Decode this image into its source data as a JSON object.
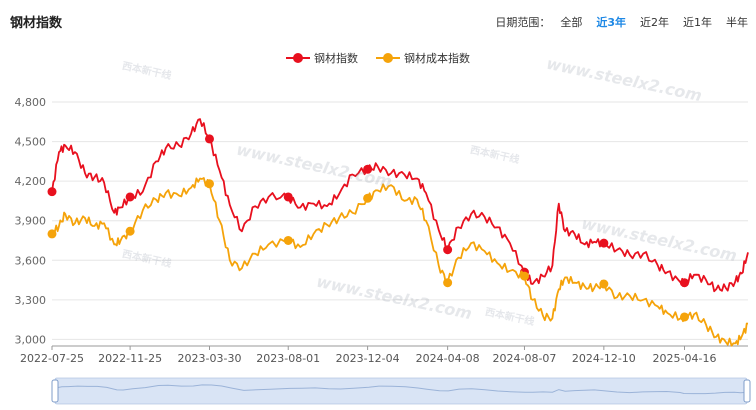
{
  "header": {
    "title": "钢材指数",
    "range_label": "日期范围：",
    "range_options": [
      "全部",
      "近3年",
      "近2年",
      "近1年",
      "半年"
    ],
    "active_option": "近3年",
    "accent_color": "#1e88e5"
  },
  "watermark": {
    "url": "www.steelx2.com",
    "brand": "西本新干线"
  },
  "chart_data": {
    "type": "line",
    "title": "",
    "xlabel": "",
    "ylabel": "",
    "ylim": [
      2950,
      4800
    ],
    "yticks": [
      3000,
      3300,
      3600,
      3900,
      4200,
      4500,
      4800
    ],
    "ytick_labels": [
      "3,000",
      "3,300",
      "3,600",
      "3,900",
      "4,200",
      "4,500",
      "4,800"
    ],
    "xlim": [
      "2022-07-25",
      "2025-07-25"
    ],
    "xticks": [
      "2022-07-25",
      "2022-11-25",
      "2023-03-30",
      "2023-08-01",
      "2023-12-04",
      "2024-04-08",
      "2024-08-07",
      "2024-12-10",
      "2025-04-16"
    ],
    "grid": "horizontal",
    "legend_position": "top-center",
    "series": [
      {
        "name": "钢材指数",
        "color": "#e8101e",
        "points": [
          [
            "2022-07-25",
            4120
          ],
          [
            "2022-08-05",
            4420
          ],
          [
            "2022-08-15",
            4470
          ],
          [
            "2022-08-30",
            4420
          ],
          [
            "2022-09-15",
            4260
          ],
          [
            "2022-09-30",
            4230
          ],
          [
            "2022-10-15",
            4190
          ],
          [
            "2022-10-31",
            3960
          ],
          [
            "2022-11-10",
            4000
          ],
          [
            "2022-11-25",
            4080
          ],
          [
            "2022-12-15",
            4120
          ],
          [
            "2023-01-05",
            4350
          ],
          [
            "2023-01-20",
            4450
          ],
          [
            "2023-02-10",
            4470
          ],
          [
            "2023-03-01",
            4560
          ],
          [
            "2023-03-15",
            4670
          ],
          [
            "2023-03-30",
            4520
          ],
          [
            "2023-04-15",
            4280
          ],
          [
            "2023-05-01",
            4020
          ],
          [
            "2023-05-20",
            3820
          ],
          [
            "2023-06-10",
            4010
          ],
          [
            "2023-07-01",
            4080
          ],
          [
            "2023-08-01",
            4080
          ],
          [
            "2023-08-20",
            4000
          ],
          [
            "2023-09-10",
            4030
          ],
          [
            "2023-10-01",
            4010
          ],
          [
            "2023-10-20",
            4100
          ],
          [
            "2023-11-10",
            4250
          ],
          [
            "2023-12-04",
            4290
          ],
          [
            "2023-12-20",
            4310
          ],
          [
            "2024-01-10",
            4260
          ],
          [
            "2024-01-31",
            4250
          ],
          [
            "2024-02-20",
            4220
          ],
          [
            "2024-03-05",
            4110
          ],
          [
            "2024-03-25",
            3830
          ],
          [
            "2024-04-08",
            3680
          ],
          [
            "2024-04-25",
            3850
          ],
          [
            "2024-05-15",
            3950
          ],
          [
            "2024-06-05",
            3930
          ],
          [
            "2024-06-25",
            3850
          ],
          [
            "2024-07-15",
            3730
          ],
          [
            "2024-08-07",
            3510
          ],
          [
            "2024-08-20",
            3420
          ],
          [
            "2024-09-05",
            3480
          ],
          [
            "2024-09-20",
            3560
          ],
          [
            "2024-09-30",
            4030
          ],
          [
            "2024-10-10",
            3820
          ],
          [
            "2024-10-25",
            3800
          ],
          [
            "2024-11-10",
            3720
          ],
          [
            "2024-11-25",
            3740
          ],
          [
            "2024-12-10",
            3730
          ],
          [
            "2024-12-31",
            3680
          ],
          [
            "2025-01-20",
            3640
          ],
          [
            "2025-02-10",
            3650
          ],
          [
            "2025-03-05",
            3560
          ],
          [
            "2025-03-20",
            3510
          ],
          [
            "2025-04-10",
            3430
          ],
          [
            "2025-04-16",
            3430
          ],
          [
            "2025-05-01",
            3490
          ],
          [
            "2025-05-20",
            3450
          ],
          [
            "2025-06-05",
            3380
          ],
          [
            "2025-06-20",
            3390
          ],
          [
            "2025-07-05",
            3440
          ],
          [
            "2025-07-15",
            3500
          ],
          [
            "2025-07-25",
            3660
          ]
        ],
        "markers": [
          [
            "2022-07-25",
            4120
          ],
          [
            "2022-11-25",
            4080
          ],
          [
            "2023-03-30",
            4520
          ],
          [
            "2023-08-01",
            4080
          ],
          [
            "2023-12-04",
            4290
          ],
          [
            "2024-04-08",
            3680
          ],
          [
            "2024-08-07",
            3510
          ],
          [
            "2024-12-10",
            3730
          ],
          [
            "2025-04-16",
            3430
          ]
        ]
      },
      {
        "name": "钢材成本指数",
        "color": "#f5a30a",
        "points": [
          [
            "2022-07-25",
            3800
          ],
          [
            "2022-08-05",
            3860
          ],
          [
            "2022-08-15",
            3950
          ],
          [
            "2022-08-30",
            3880
          ],
          [
            "2022-09-15",
            3920
          ],
          [
            "2022-09-30",
            3860
          ],
          [
            "2022-10-15",
            3880
          ],
          [
            "2022-10-31",
            3720
          ],
          [
            "2022-11-10",
            3750
          ],
          [
            "2022-11-25",
            3820
          ],
          [
            "2022-12-15",
            3980
          ],
          [
            "2023-01-05",
            4060
          ],
          [
            "2023-01-20",
            4110
          ],
          [
            "2023-02-10",
            4090
          ],
          [
            "2023-03-01",
            4150
          ],
          [
            "2023-03-15",
            4220
          ],
          [
            "2023-03-30",
            4180
          ],
          [
            "2023-04-15",
            3900
          ],
          [
            "2023-05-01",
            3600
          ],
          [
            "2023-05-20",
            3540
          ],
          [
            "2023-06-10",
            3650
          ],
          [
            "2023-07-01",
            3720
          ],
          [
            "2023-08-01",
            3750
          ],
          [
            "2023-08-20",
            3700
          ],
          [
            "2023-09-10",
            3800
          ],
          [
            "2023-10-01",
            3870
          ],
          [
            "2023-10-20",
            3920
          ],
          [
            "2023-11-10",
            3960
          ],
          [
            "2023-12-04",
            4070
          ],
          [
            "2023-12-20",
            4130
          ],
          [
            "2024-01-10",
            4170
          ],
          [
            "2024-01-31",
            4050
          ],
          [
            "2024-02-20",
            4060
          ],
          [
            "2024-03-05",
            3900
          ],
          [
            "2024-03-25",
            3560
          ],
          [
            "2024-04-08",
            3430
          ],
          [
            "2024-04-25",
            3620
          ],
          [
            "2024-05-15",
            3730
          ],
          [
            "2024-06-05",
            3670
          ],
          [
            "2024-06-25",
            3580
          ],
          [
            "2024-07-15",
            3520
          ],
          [
            "2024-08-07",
            3480
          ],
          [
            "2024-08-20",
            3300
          ],
          [
            "2024-09-05",
            3180
          ],
          [
            "2024-09-20",
            3160
          ],
          [
            "2024-09-30",
            3380
          ],
          [
            "2024-10-10",
            3470
          ],
          [
            "2024-10-25",
            3430
          ],
          [
            "2024-11-10",
            3400
          ],
          [
            "2024-11-25",
            3390
          ],
          [
            "2024-12-10",
            3420
          ],
          [
            "2024-12-31",
            3320
          ],
          [
            "2025-01-20",
            3330
          ],
          [
            "2025-02-10",
            3300
          ],
          [
            "2025-03-05",
            3250
          ],
          [
            "2025-03-20",
            3200
          ],
          [
            "2025-04-10",
            3160
          ],
          [
            "2025-04-16",
            3170
          ],
          [
            "2025-05-01",
            3190
          ],
          [
            "2025-05-20",
            3110
          ],
          [
            "2025-06-05",
            3020
          ],
          [
            "2025-06-20",
            2980
          ],
          [
            "2025-07-05",
            2970
          ],
          [
            "2025-07-15",
            3020
          ],
          [
            "2025-07-25",
            3120
          ]
        ],
        "markers": [
          [
            "2022-07-25",
            3800
          ],
          [
            "2022-11-25",
            3820
          ],
          [
            "2023-03-30",
            4180
          ],
          [
            "2023-08-01",
            3750
          ],
          [
            "2023-12-04",
            4070
          ],
          [
            "2024-04-08",
            3430
          ],
          [
            "2024-08-07",
            3480
          ],
          [
            "2024-12-10",
            3420
          ],
          [
            "2025-04-16",
            3170
          ]
        ]
      }
    ]
  }
}
